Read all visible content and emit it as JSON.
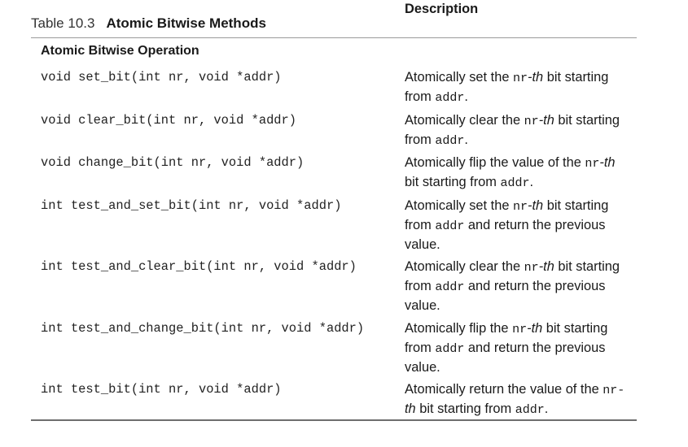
{
  "caption": {
    "number": "Table 10.3",
    "title": "Atomic Bitwise Methods"
  },
  "table": {
    "headers": {
      "operation": "Atomic Bitwise Operation",
      "description": "Description"
    },
    "rows": [
      {
        "signature": "void set_bit(int nr, void *addr)",
        "description": {
          "line1_a": "Atomically set the ",
          "line1_code": "nr",
          "line1_it": "-th",
          "line1_b": " bit starting",
          "line2_a": "from ",
          "line2_code": "addr",
          "line2_b": "."
        }
      },
      {
        "signature": "void clear_bit(int nr, void *addr)",
        "description": {
          "line1_a": "Atomically clear the ",
          "line1_code": "nr",
          "line1_it": "-th",
          "line1_b": " bit starting",
          "line2_a": "from ",
          "line2_code": "addr",
          "line2_b": "."
        }
      },
      {
        "signature": "void change_bit(int nr, void *addr)",
        "description": {
          "line1_a": "Atomically flip the value of the ",
          "line1_code": "nr",
          "line1_it": "-th",
          "line2_a": "bit starting from ",
          "line2_code": "addr",
          "line2_b": "."
        }
      },
      {
        "signature": "int test_and_set_bit(int nr, void *addr)",
        "description": {
          "line1_a": "Atomically set the ",
          "line1_code": "nr",
          "line1_it": "-th",
          "line1_b": " bit starting",
          "line2_a": "from ",
          "line2_code": "addr",
          "line2_b": " and return the previous",
          "line3": "value."
        }
      },
      {
        "signature": "int test_and_clear_bit(int nr, void *addr)",
        "description": {
          "line1_a": "Atomically clear the ",
          "line1_code": "nr",
          "line1_it": "-th",
          "line1_b": " bit starting",
          "line2_a": "from ",
          "line2_code": "addr",
          "line2_b": " and return the previous",
          "line3": "value."
        }
      },
      {
        "signature": "int test_and_change_bit(int nr, void *addr)",
        "description": {
          "line1_a": "Atomically flip the ",
          "line1_code": "nr",
          "line1_it": "-th",
          "line1_b": " bit starting",
          "line2_a": "from ",
          "line2_code": "addr",
          "line2_b": " and return the previous",
          "line3": "value."
        }
      },
      {
        "signature": "int test_bit(int nr, void *addr)",
        "description": {
          "line1_a": "Atomically return the value of the ",
          "line1_code": "nr-",
          "line2_it": "th",
          "line2_a": " bit starting from ",
          "line2_code": "addr",
          "line2_b": "."
        }
      }
    ]
  }
}
